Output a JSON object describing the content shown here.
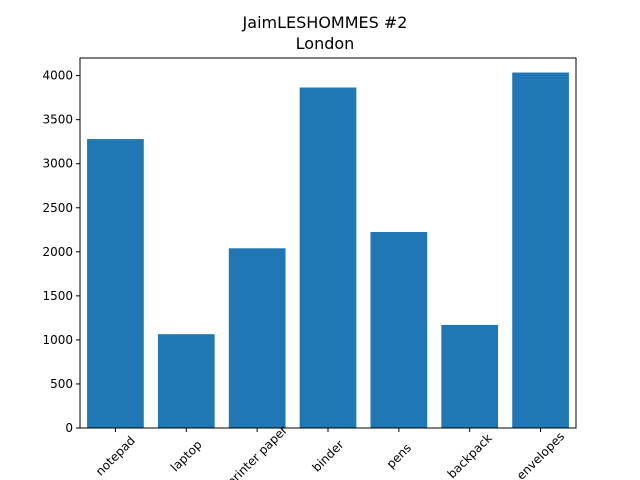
{
  "chart_data": {
    "type": "bar",
    "title": "JaimLESHOMMES #2",
    "subtitle": "London",
    "categories": [
      "notepad",
      "laptop",
      "printer paper",
      "binder",
      "pens",
      "backpack",
      "envelopes"
    ],
    "values": [
      3280,
      1065,
      2040,
      3865,
      2225,
      1170,
      4035
    ],
    "ylim": [
      0,
      4200
    ],
    "yticks": [
      0,
      500,
      1000,
      1500,
      2000,
      2500,
      3000,
      3500,
      4000
    ],
    "bar_color": "#1f77b4",
    "grid": false,
    "legend": "none"
  }
}
